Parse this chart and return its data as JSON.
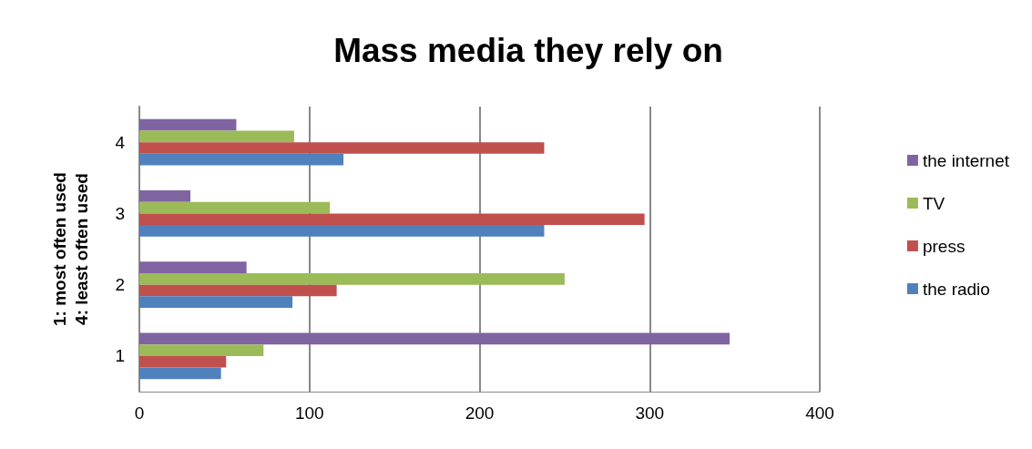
{
  "chart_data": {
    "type": "bar",
    "orientation": "horizontal",
    "title": "Mass media they rely on",
    "ylabel": "1: most often used\n4: least often used",
    "categories": [
      "4",
      "3",
      "2",
      "1"
    ],
    "series": [
      {
        "name": "the internet",
        "color": "#8064a2",
        "values": [
          57,
          30,
          63,
          347
        ]
      },
      {
        "name": "TV",
        "color": "#9bbb59",
        "values": [
          91,
          112,
          250,
          73
        ]
      },
      {
        "name": "press",
        "color": "#c0504d",
        "values": [
          238,
          297,
          116,
          51
        ]
      },
      {
        "name": "the radio",
        "color": "#4f81bd",
        "values": [
          120,
          238,
          90,
          48
        ]
      }
    ],
    "xlim": [
      0,
      400
    ],
    "xticks": [
      0,
      100,
      200,
      300,
      400
    ],
    "grid": "x",
    "legend": "right"
  }
}
